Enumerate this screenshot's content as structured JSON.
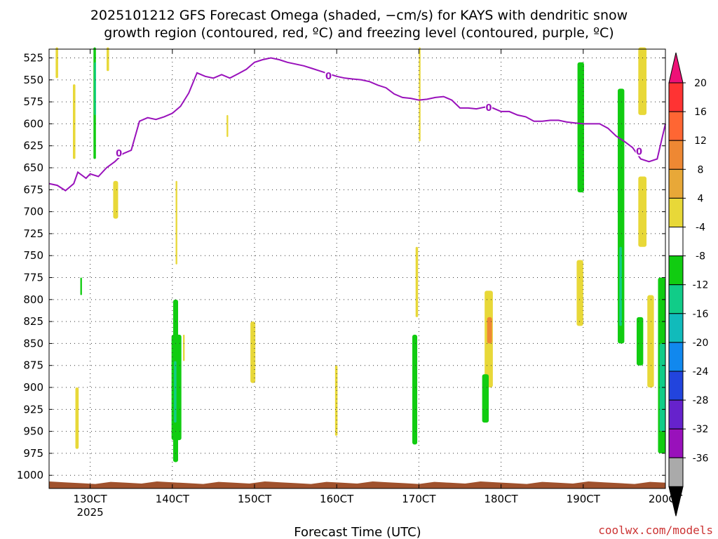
{
  "chart_data": {
    "type": "heatmap",
    "title_lines": [
      "2025101212 GFS Forecast Omega (shaded, −cm/s) for KAYS with dendritic snow",
      "growth region (contoured, red, ºC) and freezing level (contoured, purple, ºC)"
    ],
    "xlabel": "Forecast Time (UTC)",
    "credit": "coolwx.com/models",
    "x_range": [
      12.5,
      20.0
    ],
    "y_range": [
      515,
      1015
    ],
    "x_ticks": [
      {
        "v": 13,
        "label": "130CT",
        "sub": "2025"
      },
      {
        "v": 14,
        "label": "140CT",
        "sub": ""
      },
      {
        "v": 15,
        "label": "150CT",
        "sub": ""
      },
      {
        "v": 16,
        "label": "160CT",
        "sub": ""
      },
      {
        "v": 17,
        "label": "170CT",
        "sub": ""
      },
      {
        "v": 18,
        "label": "180CT",
        "sub": ""
      },
      {
        "v": 19,
        "label": "190CT",
        "sub": ""
      },
      {
        "v": 20,
        "label": "200CT",
        "sub": ""
      }
    ],
    "y_ticks": [
      "525",
      "550",
      "575",
      "600",
      "625",
      "650",
      "675",
      "700",
      "725",
      "750",
      "775",
      "800",
      "825",
      "850",
      "875",
      "900",
      "925",
      "950",
      "975",
      "1000"
    ],
    "colorbar": {
      "ticks": [
        "20",
        "16",
        "12",
        "8",
        "4",
        "-4",
        "-8",
        "-12",
        "-16",
        "-20",
        "-24",
        "-28",
        "-32",
        "-36"
      ],
      "colors": [
        "#ee1177",
        "#ff3333",
        "#ff6633",
        "#ee8833",
        "#e8a838",
        "#e8d838",
        "#ffffff",
        "#11cc11",
        "#11cc88",
        "#11bbbb",
        "#1188ee",
        "#2244dd",
        "#6622cc",
        "#9911bb",
        "#aaaaaa",
        "#000000"
      ]
    },
    "grid": true,
    "freezing_level": {
      "label": "0",
      "color": "#9911bb",
      "points": [
        [
          12.5,
          668
        ],
        [
          12.6,
          670
        ],
        [
          12.7,
          676
        ],
        [
          12.8,
          668
        ],
        [
          12.85,
          655
        ],
        [
          12.95,
          662
        ],
        [
          13.0,
          657
        ],
        [
          13.1,
          660
        ],
        [
          13.2,
          650
        ],
        [
          13.3,
          643
        ],
        [
          13.4,
          634
        ],
        [
          13.5,
          630
        ],
        [
          13.6,
          597
        ],
        [
          13.7,
          593
        ],
        [
          13.8,
          595
        ],
        [
          13.9,
          592
        ],
        [
          14.0,
          588
        ],
        [
          14.1,
          580
        ],
        [
          14.2,
          565
        ],
        [
          14.3,
          542
        ],
        [
          14.4,
          546
        ],
        [
          14.5,
          548
        ],
        [
          14.6,
          544
        ],
        [
          14.7,
          548
        ],
        [
          14.8,
          543
        ],
        [
          14.9,
          538
        ],
        [
          15.0,
          530
        ],
        [
          15.1,
          527
        ],
        [
          15.2,
          525
        ],
        [
          15.3,
          527
        ],
        [
          15.4,
          530
        ],
        [
          15.5,
          532
        ],
        [
          15.6,
          534
        ],
        [
          15.7,
          537
        ],
        [
          15.8,
          540
        ],
        [
          15.9,
          543
        ],
        [
          16.0,
          546
        ],
        [
          16.1,
          548
        ],
        [
          16.2,
          549
        ],
        [
          16.3,
          550
        ],
        [
          16.4,
          552
        ],
        [
          16.5,
          556
        ],
        [
          16.6,
          559
        ],
        [
          16.7,
          566
        ],
        [
          16.8,
          570
        ],
        [
          16.9,
          571
        ],
        [
          17.0,
          573
        ],
        [
          17.1,
          572
        ],
        [
          17.2,
          570
        ],
        [
          17.3,
          569
        ],
        [
          17.4,
          573
        ],
        [
          17.5,
          582
        ],
        [
          17.6,
          582
        ],
        [
          17.7,
          583
        ],
        [
          17.8,
          581
        ],
        [
          17.9,
          582
        ],
        [
          18.0,
          586
        ],
        [
          18.1,
          586
        ],
        [
          18.2,
          590
        ],
        [
          18.3,
          592
        ],
        [
          18.4,
          597
        ],
        [
          18.5,
          597
        ],
        [
          18.6,
          596
        ],
        [
          18.7,
          596
        ],
        [
          18.8,
          598
        ],
        [
          18.9,
          599
        ],
        [
          19.0,
          600
        ],
        [
          19.1,
          600
        ],
        [
          19.2,
          600
        ],
        [
          19.3,
          605
        ],
        [
          19.4,
          614
        ],
        [
          19.5,
          620
        ],
        [
          19.6,
          627
        ],
        [
          19.7,
          640
        ],
        [
          19.8,
          643
        ],
        [
          19.9,
          640
        ],
        [
          20.0,
          600
        ]
      ]
    },
    "omega_patches": [
      {
        "x": 12.58,
        "w": 0.03,
        "y1": 513,
        "y2": 548,
        "class": "4"
      },
      {
        "x": 12.79,
        "w": 0.03,
        "y1": 555,
        "y2": 640,
        "class": "4"
      },
      {
        "x": 12.82,
        "w": 0.04,
        "y1": 900,
        "y2": 970,
        "class": "4"
      },
      {
        "x": 13.04,
        "w": 0.03,
        "y1": 513,
        "y2": 640,
        "class": "-4"
      },
      {
        "x": 13.05,
        "w": 0.02,
        "y1": 530,
        "y2": 590,
        "class": "-8"
      },
      {
        "x": 12.88,
        "w": 0.02,
        "y1": 775,
        "y2": 795,
        "class": "-4"
      },
      {
        "x": 13.2,
        "w": 0.03,
        "y1": 513,
        "y2": 540,
        "class": "4"
      },
      {
        "x": 13.28,
        "w": 0.06,
        "y1": 665,
        "y2": 708,
        "class": "4"
      },
      {
        "x": 13.99,
        "w": 0.12,
        "y1": 840,
        "y2": 960,
        "class": "-4"
      },
      {
        "x": 14.01,
        "w": 0.06,
        "y1": 800,
        "y2": 985,
        "class": "-4"
      },
      {
        "x": 14.02,
        "w": 0.03,
        "y1": 870,
        "y2": 940,
        "class": "-8"
      },
      {
        "x": 14.04,
        "w": 0.02,
        "y1": 665,
        "y2": 760,
        "class": "4"
      },
      {
        "x": 14.13,
        "w": 0.02,
        "y1": 840,
        "y2": 870,
        "class": "4"
      },
      {
        "x": 14.66,
        "w": 0.02,
        "y1": 590,
        "y2": 615,
        "class": "4"
      },
      {
        "x": 14.95,
        "w": 0.06,
        "y1": 825,
        "y2": 895,
        "class": "4"
      },
      {
        "x": 15.98,
        "w": 0.03,
        "y1": 875,
        "y2": 955,
        "class": "4"
      },
      {
        "x": 16.96,
        "w": 0.03,
        "y1": 740,
        "y2": 820,
        "class": "4"
      },
      {
        "x": 16.92,
        "w": 0.06,
        "y1": 840,
        "y2": 965,
        "class": "-4"
      },
      {
        "x": 17.0,
        "w": 0.02,
        "y1": 513,
        "y2": 620,
        "class": "4"
      },
      {
        "x": 17.8,
        "w": 0.1,
        "y1": 790,
        "y2": 900,
        "class": "4"
      },
      {
        "x": 17.83,
        "w": 0.06,
        "y1": 820,
        "y2": 850,
        "class": "8"
      },
      {
        "x": 17.77,
        "w": 0.08,
        "y1": 885,
        "y2": 940,
        "class": "-4"
      },
      {
        "x": 18.93,
        "w": 0.08,
        "y1": 530,
        "y2": 678,
        "class": "-4"
      },
      {
        "x": 18.92,
        "w": 0.08,
        "y1": 755,
        "y2": 830,
        "class": "4"
      },
      {
        "x": 19.42,
        "w": 0.08,
        "y1": 560,
        "y2": 850,
        "class": "-4"
      },
      {
        "x": 19.44,
        "w": 0.03,
        "y1": 740,
        "y2": 830,
        "class": "-8"
      },
      {
        "x": 19.67,
        "w": 0.1,
        "y1": 513,
        "y2": 590,
        "class": "4"
      },
      {
        "x": 19.67,
        "w": 0.1,
        "y1": 660,
        "y2": 740,
        "class": "4"
      },
      {
        "x": 19.65,
        "w": 0.08,
        "y1": 820,
        "y2": 875,
        "class": "-4"
      },
      {
        "x": 19.78,
        "w": 0.08,
        "y1": 795,
        "y2": 900,
        "class": "4"
      },
      {
        "x": 19.91,
        "w": 0.09,
        "y1": 775,
        "y2": 975,
        "class": "-4"
      },
      {
        "x": 19.93,
        "w": 0.07,
        "y1": 850,
        "y2": 950,
        "class": "-8"
      }
    ],
    "surface": {
      "color": "#a0522d"
    }
  }
}
